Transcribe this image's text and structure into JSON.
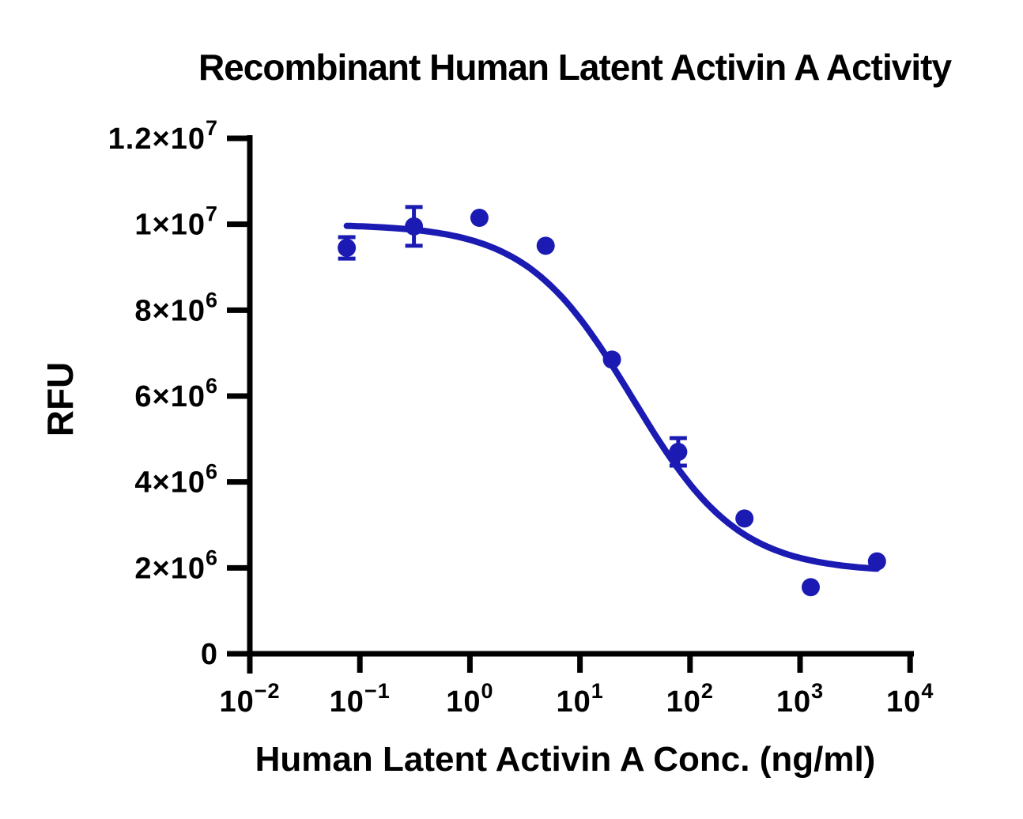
{
  "title": "Recombinant Human Latent Activin A Activity",
  "colors": {
    "accent": "#1B1BB3",
    "axis": "#000000",
    "text": "#000000",
    "background": "#FFFFFF"
  },
  "chart_data": {
    "type": "scatter",
    "title": "Recombinant Human Latent Activin A Activity",
    "xlabel": "Human Latent Activin A Conc. (ng/ml)",
    "ylabel": "RFU",
    "x_scale": "log10",
    "xlim": [
      0.01,
      10000
    ],
    "ylim": [
      0,
      12000000
    ],
    "grid": false,
    "legend": "none",
    "x_ticks": [
      {
        "value": 0.01,
        "label": "10^-2"
      },
      {
        "value": 0.1,
        "label": "10^-1"
      },
      {
        "value": 1,
        "label": "10^0"
      },
      {
        "value": 10,
        "label": "10^1"
      },
      {
        "value": 100,
        "label": "10^2"
      },
      {
        "value": 1000,
        "label": "10^3"
      },
      {
        "value": 10000,
        "label": "10^4"
      }
    ],
    "y_ticks": [
      {
        "value": 0,
        "label": "0"
      },
      {
        "value": 2000000,
        "label": "2×10^6"
      },
      {
        "value": 4000000,
        "label": "4×10^6"
      },
      {
        "value": 6000000,
        "label": "6×10^6"
      },
      {
        "value": 8000000,
        "label": "8×10^6"
      },
      {
        "value": 10000000,
        "label": "1×10^7"
      },
      {
        "value": 12000000,
        "label": "1.2×10^7"
      }
    ],
    "series": [
      {
        "name": "Human Latent Activin A",
        "color": "#1B1BB3",
        "marker": "circle",
        "points": [
          {
            "x": 0.076,
            "y": 9450000,
            "err": 250000
          },
          {
            "x": 0.31,
            "y": 9950000,
            "err": 450000
          },
          {
            "x": 1.22,
            "y": 10150000,
            "err": 0
          },
          {
            "x": 4.88,
            "y": 9500000,
            "err": 0
          },
          {
            "x": 19.53,
            "y": 6850000,
            "err": 0
          },
          {
            "x": 78.13,
            "y": 4700000,
            "err": 320000
          },
          {
            "x": 312.5,
            "y": 3150000,
            "err": 0
          },
          {
            "x": 1250,
            "y": 1550000,
            "err": 0
          },
          {
            "x": 5000,
            "y": 2150000,
            "err": 0
          }
        ]
      }
    ],
    "fit_curve": {
      "model": "4PL-inhibition",
      "top": 10000000,
      "bottom": 1900000,
      "ic50": 30,
      "hill": 0.9,
      "x_start": 0.076,
      "x_end": 5000
    }
  }
}
